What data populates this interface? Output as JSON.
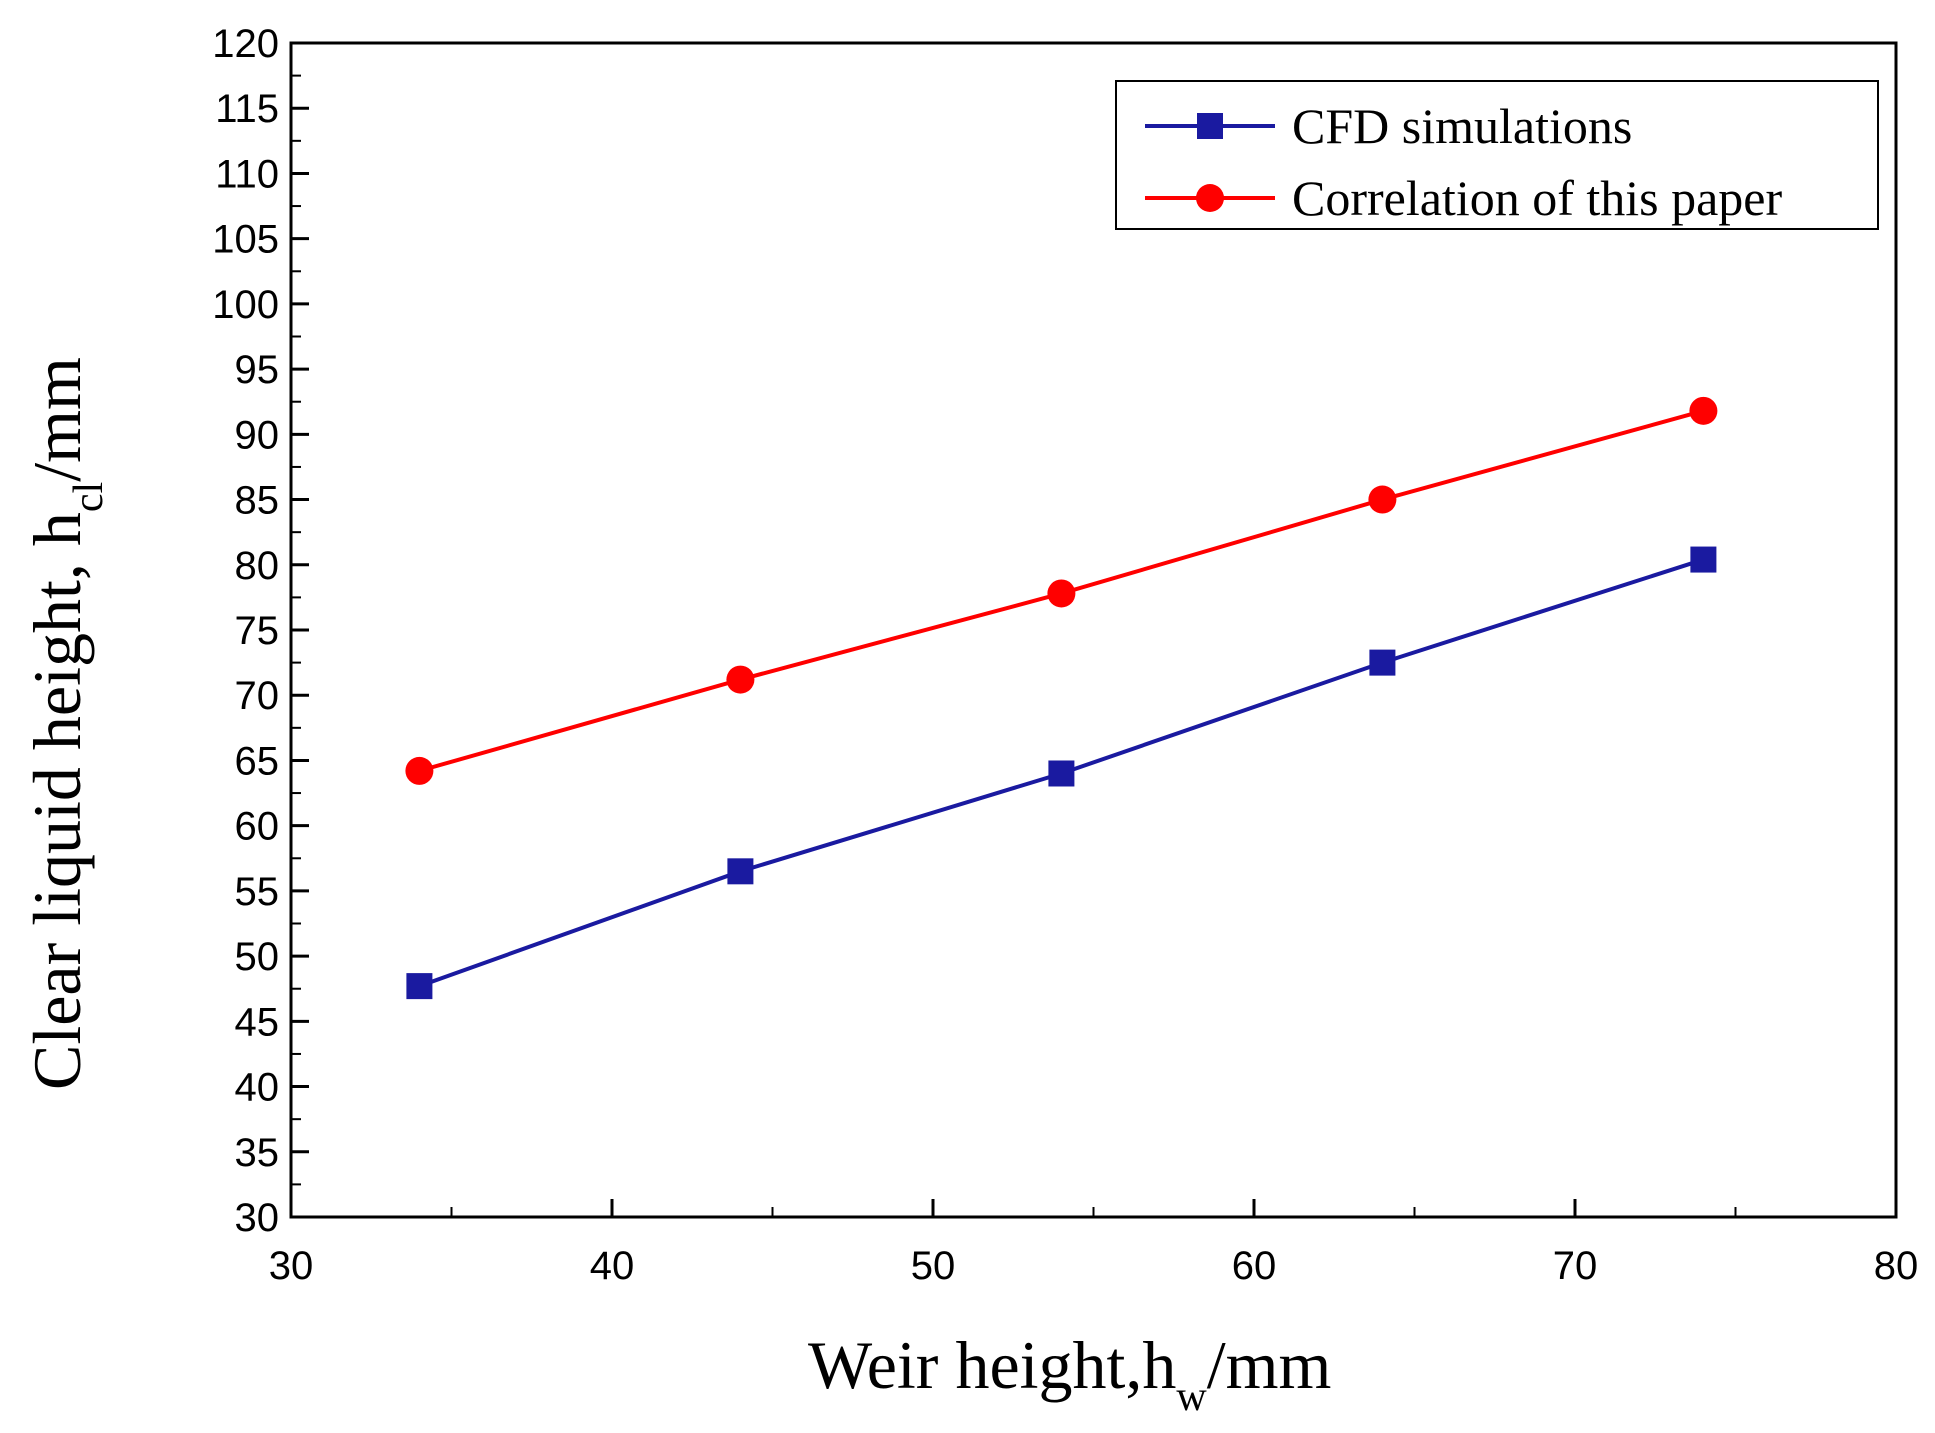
{
  "chart_data": {
    "type": "line",
    "title": "",
    "xlabel": {
      "main": "Weir height,h",
      "sub": "w",
      "unit": "/mm"
    },
    "ylabel": {
      "main": "Clear liquid height, h",
      "sub": "cl",
      "unit": "/mm"
    },
    "xlim": [
      30,
      80
    ],
    "ylim": [
      30,
      120
    ],
    "x_ticks": [
      30,
      40,
      50,
      60,
      70,
      80
    ],
    "y_ticks": [
      30,
      35,
      40,
      45,
      50,
      55,
      60,
      65,
      70,
      75,
      80,
      85,
      90,
      95,
      100,
      105,
      110,
      115,
      120
    ],
    "grid": false,
    "legend_position": "top-right",
    "x": [
      34,
      44,
      54,
      64,
      74
    ],
    "series": [
      {
        "name": "CFD simulations",
        "marker": "square",
        "color": "#1a1aa0",
        "values": [
          47.7,
          56.5,
          64.0,
          72.5,
          80.4
        ]
      },
      {
        "name": "Correlation of this paper",
        "marker": "circle",
        "color": "#ff0000",
        "values": [
          64.2,
          71.2,
          77.8,
          85.0,
          91.8
        ]
      }
    ]
  }
}
